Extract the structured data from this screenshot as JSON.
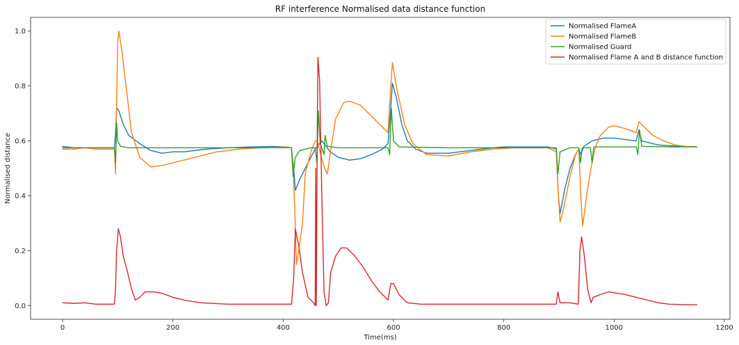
{
  "chart_data": {
    "type": "line",
    "title": "RF interference Normalised data distance function",
    "xlabel": "Time(ms)",
    "ylabel": "Normalised distance",
    "xlim": [
      -58,
      1210
    ],
    "ylim": [
      -0.05,
      1.05
    ],
    "x_ticks": [
      0,
      200,
      400,
      600,
      800,
      1000,
      1200
    ],
    "y_ticks": [
      0.0,
      0.2,
      0.4,
      0.6,
      0.8,
      1.0
    ],
    "x_tick_labels": [
      "0",
      "200",
      "400",
      "600",
      "800",
      "1000",
      "1200"
    ],
    "y_tick_labels": [
      "0.0",
      "0.2",
      "0.4",
      "0.6",
      "0.8",
      "1.0"
    ],
    "grid": false,
    "legend_position": "top-right",
    "series": [
      {
        "name": "Normalised FlameA",
        "color": "#1f77b4",
        "points": [
          [
            0,
            0.58
          ],
          [
            20,
            0.575
          ],
          [
            40,
            0.575
          ],
          [
            60,
            0.575
          ],
          [
            80,
            0.575
          ],
          [
            94,
            0.575
          ],
          [
            96,
            0.63
          ],
          [
            98,
            0.72
          ],
          [
            102,
            0.71
          ],
          [
            110,
            0.66
          ],
          [
            120,
            0.62
          ],
          [
            140,
            0.59
          ],
          [
            160,
            0.565
          ],
          [
            180,
            0.555
          ],
          [
            200,
            0.56
          ],
          [
            220,
            0.56
          ],
          [
            240,
            0.565
          ],
          [
            260,
            0.57
          ],
          [
            300,
            0.575
          ],
          [
            340,
            0.578
          ],
          [
            380,
            0.58
          ],
          [
            405,
            0.578
          ],
          [
            415,
            0.575
          ],
          [
            419,
            0.5
          ],
          [
            422,
            0.42
          ],
          [
            430,
            0.46
          ],
          [
            440,
            0.5
          ],
          [
            450,
            0.54
          ],
          [
            458,
            0.57
          ],
          [
            462,
            0.58
          ],
          [
            470,
            0.6
          ],
          [
            478,
            0.58
          ],
          [
            485,
            0.56
          ],
          [
            500,
            0.54
          ],
          [
            520,
            0.53
          ],
          [
            540,
            0.535
          ],
          [
            560,
            0.55
          ],
          [
            580,
            0.57
          ],
          [
            590,
            0.59
          ],
          [
            595,
            0.72
          ],
          [
            598,
            0.81
          ],
          [
            605,
            0.76
          ],
          [
            615,
            0.66
          ],
          [
            625,
            0.6
          ],
          [
            640,
            0.57
          ],
          [
            660,
            0.555
          ],
          [
            680,
            0.555
          ],
          [
            700,
            0.555
          ],
          [
            720,
            0.56
          ],
          [
            740,
            0.565
          ],
          [
            760,
            0.57
          ],
          [
            780,
            0.575
          ],
          [
            800,
            0.578
          ],
          [
            880,
            0.578
          ],
          [
            895,
            0.57
          ],
          [
            899,
            0.4
          ],
          [
            902,
            0.335
          ],
          [
            910,
            0.42
          ],
          [
            920,
            0.5
          ],
          [
            930,
            0.55
          ],
          [
            936,
            0.57
          ],
          [
            940,
            0.55
          ],
          [
            945,
            0.58
          ],
          [
            960,
            0.6
          ],
          [
            980,
            0.61
          ],
          [
            1000,
            0.61
          ],
          [
            1020,
            0.605
          ],
          [
            1040,
            0.6
          ],
          [
            1045,
            0.64
          ],
          [
            1050,
            0.6
          ],
          [
            1080,
            0.585
          ],
          [
            1120,
            0.58
          ],
          [
            1150,
            0.578
          ]
        ]
      },
      {
        "name": "Normalised FlameB",
        "color": "#ff7f0e",
        "points": [
          [
            0,
            0.57
          ],
          [
            20,
            0.57
          ],
          [
            40,
            0.575
          ],
          [
            60,
            0.57
          ],
          [
            80,
            0.57
          ],
          [
            94,
            0.57
          ],
          [
            96,
            0.48
          ],
          [
            98,
            0.75
          ],
          [
            100,
            0.96
          ],
          [
            102,
            1.0
          ],
          [
            106,
            0.95
          ],
          [
            115,
            0.8
          ],
          [
            125,
            0.63
          ],
          [
            140,
            0.54
          ],
          [
            160,
            0.505
          ],
          [
            180,
            0.51
          ],
          [
            200,
            0.52
          ],
          [
            240,
            0.54
          ],
          [
            280,
            0.56
          ],
          [
            320,
            0.57
          ],
          [
            360,
            0.575
          ],
          [
            400,
            0.578
          ],
          [
            415,
            0.575
          ],
          [
            418,
            0.5
          ],
          [
            421,
            0.35
          ],
          [
            424,
            0.15
          ],
          [
            428,
            0.2
          ],
          [
            435,
            0.3
          ],
          [
            440,
            0.48
          ],
          [
            450,
            0.56
          ],
          [
            458,
            0.6
          ],
          [
            462,
            0.6
          ],
          [
            468,
            0.55
          ],
          [
            475,
            0.5
          ],
          [
            480,
            0.48
          ],
          [
            485,
            0.55
          ],
          [
            495,
            0.68
          ],
          [
            510,
            0.74
          ],
          [
            520,
            0.745
          ],
          [
            540,
            0.73
          ],
          [
            560,
            0.69
          ],
          [
            580,
            0.65
          ],
          [
            590,
            0.63
          ],
          [
            595,
            0.8
          ],
          [
            598,
            0.885
          ],
          [
            605,
            0.8
          ],
          [
            620,
            0.66
          ],
          [
            635,
            0.59
          ],
          [
            660,
            0.55
          ],
          [
            700,
            0.545
          ],
          [
            740,
            0.56
          ],
          [
            780,
            0.57
          ],
          [
            820,
            0.575
          ],
          [
            880,
            0.575
          ],
          [
            895,
            0.56
          ],
          [
            899,
            0.4
          ],
          [
            902,
            0.305
          ],
          [
            908,
            0.35
          ],
          [
            920,
            0.47
          ],
          [
            930,
            0.55
          ],
          [
            936,
            0.57
          ],
          [
            940,
            0.38
          ],
          [
            943,
            0.29
          ],
          [
            950,
            0.4
          ],
          [
            958,
            0.5
          ],
          [
            965,
            0.57
          ],
          [
            975,
            0.62
          ],
          [
            990,
            0.65
          ],
          [
            1000,
            0.655
          ],
          [
            1020,
            0.645
          ],
          [
            1040,
            0.63
          ],
          [
            1045,
            0.67
          ],
          [
            1055,
            0.65
          ],
          [
            1070,
            0.62
          ],
          [
            1090,
            0.6
          ],
          [
            1110,
            0.585
          ],
          [
            1130,
            0.58
          ],
          [
            1150,
            0.578
          ]
        ]
      },
      {
        "name": "Normalised Guard",
        "color": "#2ca02c",
        "points": [
          [
            0,
            0.575
          ],
          [
            40,
            0.575
          ],
          [
            80,
            0.575
          ],
          [
            94,
            0.575
          ],
          [
            96,
            0.52
          ],
          [
            98,
            0.665
          ],
          [
            100,
            0.6
          ],
          [
            105,
            0.58
          ],
          [
            120,
            0.575
          ],
          [
            200,
            0.575
          ],
          [
            300,
            0.575
          ],
          [
            400,
            0.575
          ],
          [
            415,
            0.575
          ],
          [
            418,
            0.47
          ],
          [
            422,
            0.54
          ],
          [
            430,
            0.565
          ],
          [
            450,
            0.575
          ],
          [
            458,
            0.575
          ],
          [
            461,
            0.52
          ],
          [
            464,
            0.71
          ],
          [
            467,
            0.59
          ],
          [
            470,
            0.575
          ],
          [
            474,
            0.55
          ],
          [
            476,
            0.62
          ],
          [
            480,
            0.58
          ],
          [
            500,
            0.575
          ],
          [
            560,
            0.575
          ],
          [
            590,
            0.575
          ],
          [
            593,
            0.55
          ],
          [
            596,
            0.72
          ],
          [
            600,
            0.6
          ],
          [
            610,
            0.578
          ],
          [
            700,
            0.575
          ],
          [
            800,
            0.575
          ],
          [
            890,
            0.575
          ],
          [
            895,
            0.575
          ],
          [
            898,
            0.48
          ],
          [
            902,
            0.56
          ],
          [
            920,
            0.575
          ],
          [
            936,
            0.575
          ],
          [
            939,
            0.52
          ],
          [
            942,
            0.575
          ],
          [
            957,
            0.575
          ],
          [
            960,
            0.52
          ],
          [
            963,
            0.578
          ],
          [
            1000,
            0.578
          ],
          [
            1040,
            0.578
          ],
          [
            1043,
            0.55
          ],
          [
            1046,
            0.64
          ],
          [
            1050,
            0.58
          ],
          [
            1100,
            0.578
          ],
          [
            1150,
            0.578
          ]
        ]
      },
      {
        "name": "Normalised Flame A and B distance function",
        "color": "#d62728",
        "points": [
          [
            0,
            0.01
          ],
          [
            20,
            0.008
          ],
          [
            40,
            0.01
          ],
          [
            60,
            0.005
          ],
          [
            80,
            0.005
          ],
          [
            94,
            0.005
          ],
          [
            96,
            0.06
          ],
          [
            98,
            0.2
          ],
          [
            101,
            0.28
          ],
          [
            105,
            0.25
          ],
          [
            110,
            0.18
          ],
          [
            118,
            0.12
          ],
          [
            125,
            0.06
          ],
          [
            132,
            0.02
          ],
          [
            140,
            0.03
          ],
          [
            150,
            0.05
          ],
          [
            165,
            0.05
          ],
          [
            180,
            0.045
          ],
          [
            200,
            0.03
          ],
          [
            220,
            0.02
          ],
          [
            250,
            0.01
          ],
          [
            300,
            0.005
          ],
          [
            350,
            0.005
          ],
          [
            400,
            0.005
          ],
          [
            415,
            0.005
          ],
          [
            419,
            0.1
          ],
          [
            422,
            0.28
          ],
          [
            428,
            0.22
          ],
          [
            435,
            0.12
          ],
          [
            445,
            0.03
          ],
          [
            455,
            0.01
          ],
          [
            458,
            0.0
          ],
          [
            459,
            0.5
          ],
          [
            460,
            0.0
          ],
          [
            462,
            0.7
          ],
          [
            463,
            0.905
          ],
          [
            466,
            0.82
          ],
          [
            470,
            0.4
          ],
          [
            474,
            0.05
          ],
          [
            478,
            0.0
          ],
          [
            482,
            0.01
          ],
          [
            486,
            0.12
          ],
          [
            495,
            0.18
          ],
          [
            505,
            0.21
          ],
          [
            515,
            0.21
          ],
          [
            530,
            0.18
          ],
          [
            545,
            0.14
          ],
          [
            560,
            0.09
          ],
          [
            575,
            0.05
          ],
          [
            590,
            0.02
          ],
          [
            595,
            0.08
          ],
          [
            600,
            0.08
          ],
          [
            610,
            0.04
          ],
          [
            625,
            0.01
          ],
          [
            650,
            0.005
          ],
          [
            700,
            0.005
          ],
          [
            750,
            0.005
          ],
          [
            800,
            0.005
          ],
          [
            880,
            0.005
          ],
          [
            895,
            0.005
          ],
          [
            898,
            0.05
          ],
          [
            902,
            0.01
          ],
          [
            920,
            0.01
          ],
          [
            935,
            0.005
          ],
          [
            938,
            0.2
          ],
          [
            941,
            0.25
          ],
          [
            946,
            0.18
          ],
          [
            952,
            0.06
          ],
          [
            958,
            0.01
          ],
          [
            962,
            0.03
          ],
          [
            975,
            0.04
          ],
          [
            990,
            0.05
          ],
          [
            1005,
            0.045
          ],
          [
            1020,
            0.04
          ],
          [
            1040,
            0.03
          ],
          [
            1060,
            0.02
          ],
          [
            1080,
            0.01
          ],
          [
            1100,
            0.005
          ],
          [
            1130,
            0.003
          ],
          [
            1150,
            0.003
          ]
        ]
      }
    ]
  }
}
